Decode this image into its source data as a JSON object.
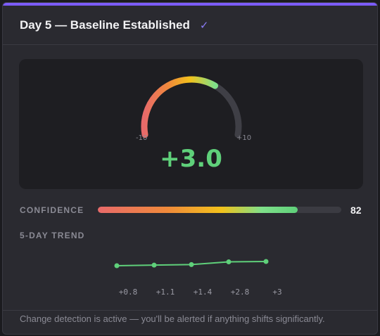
{
  "header": {
    "title": "Day 5 — Baseline Established",
    "check_icon": "✓"
  },
  "colors": {
    "accent": "#7c5cff",
    "positive": "#5fd07a",
    "gauge_track": "#3f3f46",
    "trend_line": "#5fd07a"
  },
  "gauge": {
    "min_label": "-10",
    "max_label": "+10",
    "min": -10,
    "max": 10,
    "value": 3.0,
    "value_label": "+3.0"
  },
  "confidence": {
    "label": "CONFIDENCE",
    "value": 82,
    "value_label": "82"
  },
  "trend": {
    "label": "5-DAY TREND",
    "values": [
      0.8,
      1.1,
      1.4,
      2.8,
      3
    ],
    "tick_labels": [
      "+0.8",
      "+1.1",
      "+1.4",
      "+2.8",
      "+3"
    ]
  },
  "footer": {
    "text": "Change detection is active — you'll be alerted if anything shifts significantly."
  }
}
